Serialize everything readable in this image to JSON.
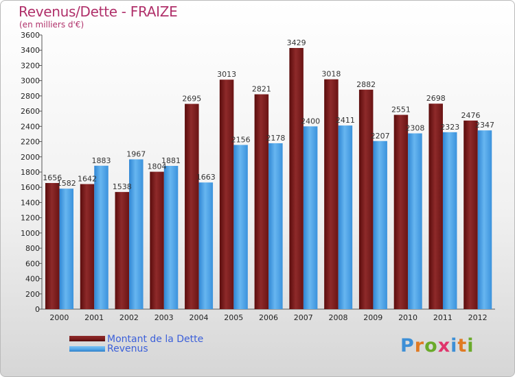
{
  "title": "Revenus/Dette - FRAIZE",
  "subtitle": "(en milliers d'€)",
  "chart_data": {
    "type": "bar",
    "categories": [
      "2000",
      "2001",
      "2002",
      "2003",
      "2004",
      "2005",
      "2006",
      "2007",
      "2008",
      "2009",
      "2010",
      "2011",
      "2012"
    ],
    "series": [
      {
        "name": "Montant de la Dette",
        "color": "#7b1c1c",
        "values": [
          1656,
          1642,
          1538,
          1804,
          2695,
          3013,
          2821,
          3429,
          3018,
          2882,
          2551,
          2698,
          2476
        ]
      },
      {
        "name": "Revenus",
        "color": "#4fa3e6",
        "values": [
          1582,
          1883,
          1967,
          1881,
          1663,
          2156,
          2178,
          2400,
          2411,
          2207,
          2308,
          2323,
          2347
        ]
      }
    ],
    "ylim": [
      0,
      3600
    ],
    "yticks": [
      0,
      200,
      400,
      600,
      800,
      1000,
      1200,
      1400,
      1600,
      1800,
      2000,
      2200,
      2400,
      2600,
      2800,
      3000,
      3200,
      3400,
      3600
    ],
    "grid": false,
    "legend": "bottom-left"
  },
  "legend": {
    "dette": {
      "label": "Montant de la Dette",
      "color": "#7b1c1c"
    },
    "revenus": {
      "label": "Revenus",
      "color": "#4fa3e6"
    }
  },
  "logo": {
    "text": "Proxiti",
    "colors": [
      "#3d8fd6",
      "#e07a23",
      "#6aaa2a",
      "#e0356c",
      "#3d8fd6",
      "#e07a23",
      "#6aaa2a"
    ]
  }
}
